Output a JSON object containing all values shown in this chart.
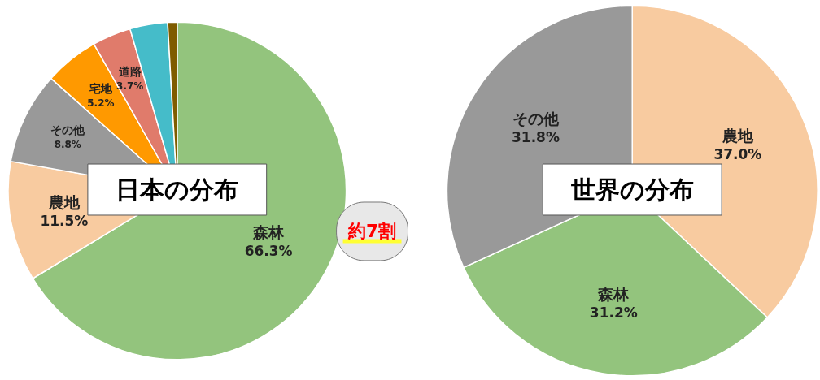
{
  "chart_data": [
    {
      "type": "pie",
      "title": "日本の分布",
      "categories": [
        "森林",
        "農地",
        "その他",
        "宅地",
        "道路",
        null,
        null
      ],
      "values": [
        66.3,
        11.5,
        8.8,
        5.2,
        3.7,
        3.6,
        0.9
      ],
      "value_labels": [
        "66.3%",
        "11.5%",
        "8.8%",
        "5.2%",
        "3.7%",
        null,
        null
      ],
      "colors": [
        "#93c47d",
        "#f8cba0",
        "#999999",
        "#ff9900",
        "#e07b6b",
        "#45bcc9",
        "#7f5c00"
      ],
      "annotations": [
        "約7割"
      ]
    },
    {
      "type": "pie",
      "title": "世界の分布",
      "categories": [
        "農地",
        "森林",
        "その他"
      ],
      "values": [
        37.0,
        31.2,
        31.8
      ],
      "value_labels": [
        "37.0%",
        "31.2%",
        "31.8%"
      ],
      "colors": [
        "#f8cba0",
        "#93c47d",
        "#999999"
      ]
    }
  ]
}
